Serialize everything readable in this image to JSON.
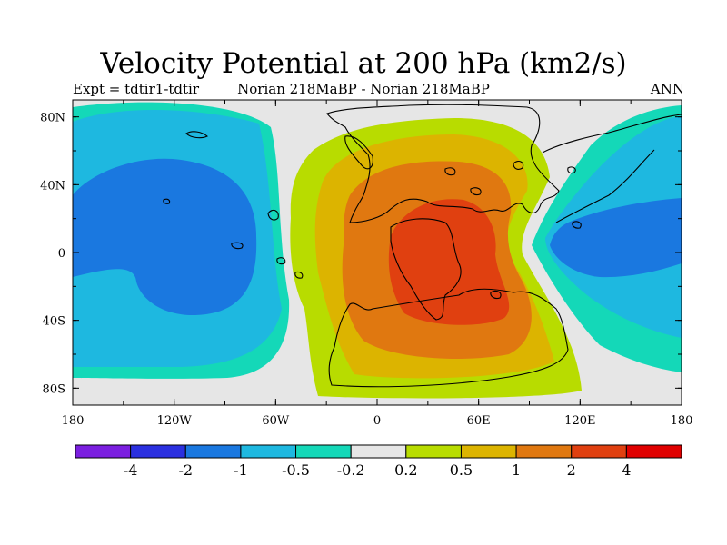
{
  "chart_data": {
    "type": "heatmap",
    "title": "Velocity Potential at 200 hPa (km2/s)",
    "subtitle_left": "Expt = tdtir1-tdtir",
    "subtitle_center": "Norian   218MaBP - Norian   218MaBP",
    "subtitle_right": "ANN",
    "x_ticks": [
      "180",
      "120W",
      "60W",
      "0",
      "60E",
      "120E",
      "180"
    ],
    "y_ticks": [
      "80N",
      "40N",
      "0",
      "40S",
      "80S"
    ],
    "xlim": [
      -180,
      180
    ],
    "ylim": [
      -90,
      90
    ],
    "colorbar": {
      "labels": [
        "-4",
        "-2",
        "-1",
        "-0.5",
        "-0.2",
        "0.2",
        "0.5",
        "1",
        "2",
        "4"
      ],
      "colors": [
        "#7b1fe0",
        "#2b30e0",
        "#1a78e0",
        "#1eb8e0",
        "#14d8b8",
        "#e6e6e6",
        "#b8dc00",
        "#dcb400",
        "#e07810",
        "#e04010",
        "#e00000"
      ]
    },
    "palette": {
      "neutral": "#e6e6e6",
      "neg02": "#14d8b8",
      "neg05": "#1eb8e0",
      "neg1": "#1a78e0",
      "pos02": "#b8dc00",
      "pos05": "#dcb400",
      "pos1": "#e07810",
      "pos2": "#e04010"
    }
  }
}
